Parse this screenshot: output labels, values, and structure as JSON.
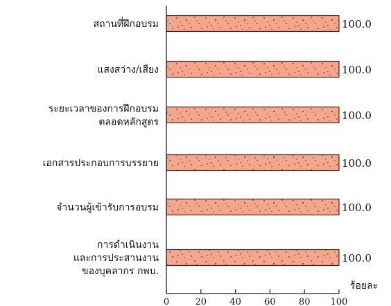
{
  "chart_data": {
    "type": "bar",
    "orientation": "horizontal",
    "categories": [
      [
        "สถานที่ฝึกอบรม"
      ],
      [
        "แสงสว่าง/เสียง"
      ],
      [
        "ระยะเวลาของการฝึกอบรม",
        "ตลอดหลักสูตร"
      ],
      [
        "เอกสารประกอบการบรรยาย"
      ],
      [
        "จำนวนผู้เข้ารับการอบรม"
      ],
      [
        "การดำเนินงาน",
        "และการประสานงาน",
        "ของบุคลากร กพบ."
      ]
    ],
    "values": [
      100.0,
      100.0,
      100.0,
      100.0,
      100.0,
      100.0
    ],
    "value_labels": [
      "100.0",
      "100.0",
      "100.0",
      "100.0",
      "100.0",
      "100.0"
    ],
    "xlim": [
      0,
      100
    ],
    "xticks": [
      0,
      20,
      40,
      60,
      80,
      100
    ],
    "xlabel": "ร้อยละ",
    "title": "",
    "ylabel": "",
    "grid": false,
    "legend": "none",
    "colors": {
      "bar_fill": "#f4a58a",
      "bar_stroke": "#3a2a22",
      "speckle": "#2b1a12",
      "axis": "#222222",
      "text": "#111111"
    }
  }
}
